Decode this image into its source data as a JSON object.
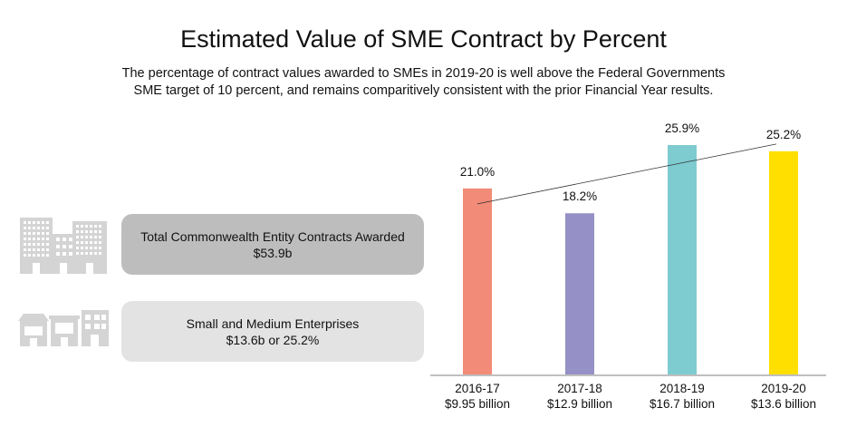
{
  "header": {
    "title": "Estimated Value of SME Contract by Percent",
    "subtitle_line1": "The percentage of contract values awarded to SMEs in 2019-20 is well above the Federal Governments",
    "subtitle_line2": "SME target of 10 percent, and remains comparitively consistent with the prior Financial Year results."
  },
  "cards": {
    "total": {
      "label": "Total Commonwealth Entity Contracts Awarded",
      "value": "$53.9b",
      "color": "#bdbdbd"
    },
    "sme": {
      "label": "Small and Medium Enterprises",
      "value": "$13.6b or 25.2%",
      "color": "#e3e3e3"
    }
  },
  "icons": {
    "total": "office-buildings-icon",
    "sme": "shopfronts-icon"
  },
  "chart_data": {
    "type": "bar",
    "title": "Estimated Value of SME Contract by Percent",
    "categories": [
      "2016-17",
      "2017-18",
      "2018-19",
      "2019-20"
    ],
    "subcategories": [
      "$9.95 billion",
      "$12.9 billion",
      "$16.7 billion",
      "$13.6 billion"
    ],
    "values": [
      21.0,
      18.2,
      25.9,
      25.2
    ],
    "value_labels": [
      "21.0%",
      "18.2%",
      "25.9%",
      "25.2%"
    ],
    "colors": [
      "#f28b77",
      "#9590c5",
      "#7ecbd0",
      "#ffdf00"
    ],
    "ylim": [
      0,
      25.9
    ],
    "trendline": true,
    "trendline_color": "#333333",
    "grid": false,
    "xlabel": "",
    "ylabel": ""
  }
}
